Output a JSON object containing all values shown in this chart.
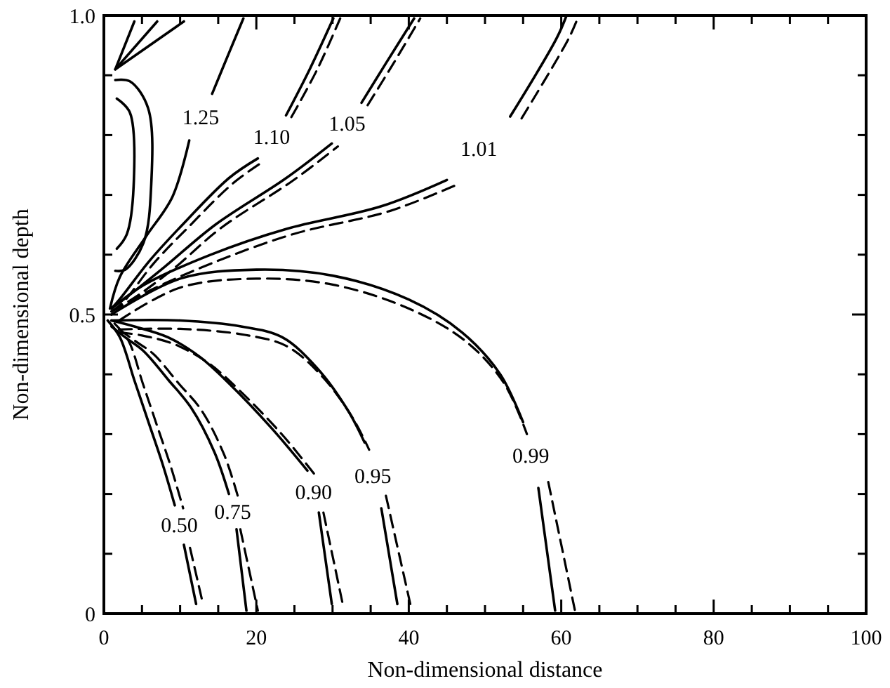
{
  "chart_data": {
    "type": "line",
    "xlabel": "Non-dimensional distance",
    "ylabel": "Non-dimensional depth",
    "xlim": [
      0,
      100
    ],
    "ylim": [
      0,
      1
    ],
    "xticks": [
      0,
      {
        "value": 5,
        "label": null
      },
      {
        "value": 10,
        "label": null
      },
      {
        "value": 15,
        "label": null
      },
      20,
      {
        "value": 25,
        "label": null
      },
      {
        "value": 30,
        "label": null
      },
      {
        "value": 35,
        "label": null
      },
      40,
      {
        "value": 45,
        "label": null
      },
      {
        "value": 50,
        "label": null
      },
      {
        "value": 55,
        "label": null
      },
      60,
      {
        "value": 65,
        "label": null
      },
      {
        "value": 70,
        "label": null
      },
      {
        "value": 75,
        "label": null
      },
      80,
      {
        "value": 85,
        "label": null
      },
      {
        "value": 90,
        "label": null
      },
      {
        "value": 95,
        "label": null
      },
      100
    ],
    "yticks": [
      0,
      {
        "value": 0.1,
        "label": null
      },
      {
        "value": 0.2,
        "label": null
      },
      {
        "value": 0.3,
        "label": null
      },
      {
        "value": 0.4,
        "label": null
      },
      0.5,
      {
        "value": 0.6,
        "label": null
      },
      {
        "value": 0.7,
        "label": null
      },
      {
        "value": 0.8,
        "label": null
      },
      {
        "value": 0.9,
        "label": null
      },
      {
        "value": 1,
        "label": "1.0"
      }
    ],
    "grid": false,
    "legend": false,
    "marker": "none",
    "series": [
      {
        "name": "1.25",
        "color": "#000000",
        "line_style": "solid",
        "x": [
          0.8,
          2.1,
          5.5,
          9.0,
          11.2,
          12.7,
          14.2,
          16.5,
          18.3
        ],
        "values": [
          0.51,
          0.563,
          0.63,
          0.697,
          0.791,
          null,
          0.869,
          0.94,
          0.995
        ]
      },
      {
        "name": "1.10",
        "color": "#000000",
        "line_style": "solid",
        "x": [
          1,
          2.1,
          6,
          10.3,
          16.4,
          20.2,
          22,
          23.9,
          27,
          30.1
        ],
        "values": [
          0.51,
          0.526,
          0.59,
          0.65,
          0.728,
          0.761,
          null,
          0.833,
          0.91,
          0.995
        ]
      },
      {
        "color": "#000000",
        "line_style": "dashed",
        "x": [
          1,
          2.5,
          6.5,
          11,
          17,
          20.8,
          22.7,
          24.6,
          28,
          31
        ],
        "values": [
          0.505,
          0.52,
          0.585,
          0.645,
          0.72,
          0.755,
          null,
          0.83,
          0.91,
          0.995
        ]
      },
      {
        "name": "1.05",
        "color": "#000000",
        "line_style": "solid",
        "x": [
          1,
          3.4,
          8,
          14.6,
          23.9,
          29.9,
          31.9,
          33.8,
          37,
          40.7
        ],
        "values": [
          0.51,
          0.533,
          0.58,
          0.65,
          0.728,
          0.786,
          null,
          0.854,
          0.92,
          0.995
        ]
      },
      {
        "color": "#000000",
        "line_style": "dashed",
        "x": [
          1,
          4,
          9,
          15.4,
          24.7,
          30.7,
          32.7,
          34.6,
          38,
          41.5
        ],
        "values": [
          0.505,
          0.528,
          0.575,
          0.645,
          0.723,
          0.781,
          null,
          0.85,
          0.92,
          0.995
        ]
      },
      {
        "name": "1.01",
        "color": "#000000",
        "line_style": "solid",
        "x": [
          1,
          5.2,
          14,
          23.9,
          36.4,
          45,
          49.2,
          53.3,
          59.4,
          60.7
        ],
        "values": [
          0.51,
          0.549,
          0.6,
          0.643,
          0.681,
          0.725,
          null,
          0.831,
          0.962,
          1
        ]
      },
      {
        "color": "#000000",
        "line_style": "dashed",
        "x": [
          1,
          6,
          15,
          25,
          37.5,
          46.5,
          50.7,
          54.8,
          61,
          62.3
        ],
        "values": [
          0.505,
          0.54,
          0.59,
          0.635,
          0.673,
          0.718,
          null,
          0.828,
          0.962,
          1
        ]
      },
      {
        "name": "0.99",
        "color": "#000000",
        "line_style": "solid",
        "x": [
          1,
          10,
          20,
          30,
          40,
          47,
          52,
          55,
          56,
          57,
          59.2
        ],
        "values": [
          0.5,
          0.56,
          0.575,
          0.565,
          0.525,
          0.47,
          0.4,
          0.32,
          null,
          0.21,
          0.005
        ]
      },
      {
        "color": "#000000",
        "line_style": "dashed",
        "x": [
          2,
          10,
          20,
          30,
          40,
          47.5,
          52.5,
          55.5,
          57,
          58.3,
          61.8
        ],
        "values": [
          0.49,
          0.545,
          0.56,
          0.55,
          0.51,
          0.455,
          0.385,
          0.3,
          null,
          0.22,
          0.005
        ]
      },
      {
        "name": "0.95",
        "color": "#000000",
        "line_style": "solid",
        "x": [
          1,
          10,
          18,
          23.4,
          28,
          32,
          34.2,
          35.3,
          36.4,
          38.5
        ],
        "values": [
          0.49,
          0.49,
          0.48,
          0.462,
          0.41,
          0.34,
          0.286,
          null,
          0.176,
          0.016
        ]
      },
      {
        "color": "#000000",
        "line_style": "dashed",
        "x": [
          2,
          10,
          18.5,
          24,
          28.6,
          32.6,
          34.8,
          35.9,
          37,
          40.2
        ],
        "values": [
          0.475,
          0.476,
          0.466,
          0.447,
          0.397,
          0.328,
          0.274,
          null,
          0.197,
          0.016
        ]
      },
      {
        "name": "0.90",
        "color": "#000000",
        "line_style": "solid",
        "x": [
          1,
          4,
          8.4,
          12.5,
          16.4,
          22,
          26.7,
          27.5,
          28.2,
          29.9
        ],
        "values": [
          0.49,
          0.48,
          0.462,
          0.43,
          0.385,
          0.31,
          0.239,
          null,
          0.169,
          0.016
        ]
      },
      {
        "color": "#000000",
        "line_style": "dashed",
        "x": [
          2,
          5,
          9.5,
          13.8,
          17.8,
          23.4,
          27.8,
          28.3,
          28.8,
          31.4
        ],
        "values": [
          0.47,
          0.465,
          0.449,
          0.418,
          0.373,
          0.299,
          0.23,
          null,
          0.169,
          0.012
        ]
      },
      {
        "name": "0.75",
        "color": "#000000",
        "line_style": "solid",
        "x": [
          1,
          3,
          5.2,
          8.5,
          11.4,
          14.5,
          16.4,
          16.9,
          17.4,
          18.7
        ],
        "values": [
          0.48,
          0.46,
          0.439,
          0.39,
          0.345,
          0.27,
          0.2,
          null,
          0.141,
          0.005
        ]
      },
      {
        "color": "#000000",
        "line_style": "dashed",
        "x": [
          2,
          4.2,
          6.5,
          9.8,
          12.8,
          15.8,
          17.6,
          17.8,
          17.9,
          20.2
        ],
        "values": [
          0.475,
          0.455,
          0.434,
          0.385,
          0.34,
          0.265,
          0.195,
          null,
          0.141,
          0.005
        ]
      },
      {
        "name": "0.50",
        "color": "#000000",
        "line_style": "solid",
        "x": [
          0.5,
          2.1,
          4,
          5.8,
          7.7,
          9.3,
          9.9,
          10.5,
          12.1
        ],
        "values": [
          0.49,
          0.462,
          0.39,
          0.322,
          0.25,
          0.181,
          null,
          0.115,
          0.016
        ]
      },
      {
        "color": "#000000",
        "line_style": "dashed",
        "x": [
          1.4,
          3.2,
          5.1,
          6.9,
          8.8,
          10.4,
          10.8,
          11.3,
          13
        ],
        "values": [
          0.485,
          0.457,
          0.385,
          0.317,
          0.245,
          0.176,
          null,
          0.11,
          0.016
        ]
      },
      {
        "color": "#000000",
        "line_style": "solid",
        "x": [
          1.5,
          3.4,
          5.8,
          6.2,
          5.2,
          2.8,
          1.5
        ],
        "values": [
          0.892,
          0.89,
          0.845,
          0.714,
          0.62,
          0.575,
          0.573
        ]
      },
      {
        "color": "#000000",
        "line_style": "solid",
        "x": [
          1.7,
          3.4,
          3.9,
          3,
          1.7
        ],
        "values": [
          0.861,
          0.838,
          0.714,
          0.634,
          0.61
        ]
      },
      {
        "color": "#000000",
        "line_style": "solid",
        "x": [
          1.5,
          4
        ],
        "values": [
          0.91,
          0.99
        ]
      },
      {
        "color": "#000000",
        "line_style": "solid",
        "x": [
          1.5,
          7
        ],
        "values": [
          0.91,
          0.99
        ]
      },
      {
        "color": "#000000",
        "line_style": "solid",
        "x": [
          1.5,
          10.5
        ],
        "values": [
          0.91,
          0.99
        ]
      }
    ]
  }
}
